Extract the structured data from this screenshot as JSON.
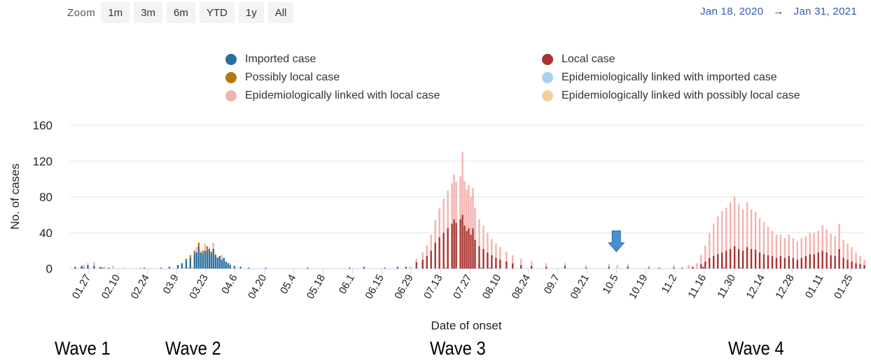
{
  "zoom": {
    "label": "Zoom",
    "buttons": [
      "1m",
      "3m",
      "6m",
      "YTD",
      "1y",
      "All"
    ]
  },
  "range": {
    "from": "Jan 18, 2020",
    "separator": "→",
    "to": "Jan 31, 2021"
  },
  "legend": [
    {
      "name": "Imported case",
      "color": "#2a6fa0"
    },
    {
      "name": "Local case",
      "color": "#a8322e"
    },
    {
      "name": "Possibly local case",
      "color": "#b8760e"
    },
    {
      "name": "Epidemiologically linked with imported case",
      "color": "#a9d2ee"
    },
    {
      "name": "Epidemiologically linked with local case",
      "color": "#f3b2b0"
    },
    {
      "name": "Epidemiologically linked with possibly local case",
      "color": "#f6cf9b"
    }
  ],
  "waves": [
    "Wave 1",
    "Wave 2",
    "Wave 3",
    "Wave 4"
  ],
  "arrow_marker": {
    "date": "10.5",
    "color": "#4a8fd0"
  },
  "chart_data": {
    "type": "bar",
    "stacked": true,
    "xlabel": "Date of onset",
    "ylabel": "No. of cases",
    "ylim": [
      0,
      160
    ],
    "yticks": [
      0,
      40,
      80,
      120,
      160
    ],
    "grid": true,
    "x_start": "2020-01-18",
    "x_end": "2021-01-31",
    "xtick_labels": [
      "01.27",
      "02.10",
      "02.24",
      "03.9",
      "03.23",
      "04.6",
      "04.20",
      "05.4",
      "05.18",
      "06.1",
      "06.15",
      "06.29",
      "07.13",
      "07.27",
      "08.10",
      "08.24",
      "09.7",
      "09.21",
      "10.5",
      "10.19",
      "11.2",
      "11.16",
      "11.30",
      "12.14",
      "12.28",
      "01.11",
      "01.25"
    ],
    "series": [
      {
        "name": "Imported case",
        "color": "#2a6fa0",
        "points": [
          [
            "2020-01-20",
            2
          ],
          [
            "2020-01-23",
            3
          ],
          [
            "2020-01-26",
            4
          ],
          [
            "2020-01-29",
            3
          ],
          [
            "2020-02-01",
            2
          ],
          [
            "2020-02-05",
            1
          ],
          [
            "2020-02-22",
            1
          ],
          [
            "2020-03-01",
            1
          ],
          [
            "2020-03-05",
            2
          ],
          [
            "2020-03-09",
            4
          ],
          [
            "2020-03-11",
            6
          ],
          [
            "2020-03-13",
            9
          ],
          [
            "2020-03-15",
            12
          ],
          [
            "2020-03-17",
            16
          ],
          [
            "2020-03-18",
            18
          ],
          [
            "2020-03-19",
            22
          ],
          [
            "2020-03-20",
            18
          ],
          [
            "2020-03-21",
            16
          ],
          [
            "2020-03-22",
            20
          ],
          [
            "2020-03-23",
            18
          ],
          [
            "2020-03-24",
            22
          ],
          [
            "2020-03-25",
            16
          ],
          [
            "2020-03-26",
            20
          ],
          [
            "2020-03-27",
            14
          ],
          [
            "2020-03-28",
            12
          ],
          [
            "2020-03-29",
            14
          ],
          [
            "2020-03-30",
            10
          ],
          [
            "2020-03-31",
            12
          ],
          [
            "2020-04-01",
            8
          ],
          [
            "2020-04-02",
            6
          ],
          [
            "2020-04-03",
            4
          ],
          [
            "2020-04-05",
            3
          ],
          [
            "2020-04-08",
            2
          ],
          [
            "2020-04-12",
            1
          ],
          [
            "2020-04-20",
            1
          ],
          [
            "2020-05-10",
            1
          ],
          [
            "2020-05-30",
            1
          ],
          [
            "2020-06-06",
            2
          ],
          [
            "2020-06-16",
            1
          ],
          [
            "2020-06-22",
            2
          ],
          [
            "2020-06-26",
            2
          ],
          [
            "2020-07-01",
            2
          ],
          [
            "2020-07-10",
            1
          ],
          [
            "2020-07-20",
            1
          ],
          [
            "2020-08-01",
            1
          ],
          [
            "2020-09-10",
            1
          ],
          [
            "2020-10-01",
            1
          ],
          [
            "2020-10-25",
            1
          ],
          [
            "2020-11-05",
            1
          ],
          [
            "2020-11-15",
            2
          ],
          [
            "2020-11-25",
            1
          ],
          [
            "2020-12-03",
            1
          ],
          [
            "2020-12-10",
            1
          ],
          [
            "2021-01-05",
            1
          ]
        ]
      },
      {
        "name": "Local case",
        "color": "#a8322e",
        "points": [
          [
            "2020-01-24",
            1
          ],
          [
            "2020-02-02",
            1
          ],
          [
            "2020-03-19",
            2
          ],
          [
            "2020-03-23",
            2
          ],
          [
            "2020-03-26",
            2
          ],
          [
            "2020-07-01",
            5
          ],
          [
            "2020-07-04",
            10
          ],
          [
            "2020-07-06",
            14
          ],
          [
            "2020-07-08",
            20
          ],
          [
            "2020-07-10",
            28
          ],
          [
            "2020-07-12",
            35
          ],
          [
            "2020-07-14",
            40
          ],
          [
            "2020-07-16",
            45
          ],
          [
            "2020-07-18",
            50
          ],
          [
            "2020-07-19",
            55
          ],
          [
            "2020-07-20",
            50
          ],
          [
            "2020-07-22",
            55
          ],
          [
            "2020-07-23",
            60
          ],
          [
            "2020-07-24",
            48
          ],
          [
            "2020-07-25",
            42
          ],
          [
            "2020-07-26",
            45
          ],
          [
            "2020-07-27",
            38
          ],
          [
            "2020-07-28",
            45
          ],
          [
            "2020-07-29",
            32
          ],
          [
            "2020-07-31",
            25
          ],
          [
            "2020-08-02",
            22
          ],
          [
            "2020-08-04",
            18
          ],
          [
            "2020-08-06",
            15
          ],
          [
            "2020-08-08",
            12
          ],
          [
            "2020-08-10",
            10
          ],
          [
            "2020-08-13",
            8
          ],
          [
            "2020-08-16",
            6
          ],
          [
            "2020-08-20",
            4
          ],
          [
            "2020-08-25",
            3
          ],
          [
            "2020-09-01",
            2
          ],
          [
            "2020-09-10",
            2
          ],
          [
            "2020-09-20",
            1
          ],
          [
            "2020-10-01",
            1
          ],
          [
            "2020-10-10",
            2
          ],
          [
            "2020-10-20",
            1
          ],
          [
            "2020-11-01",
            1
          ],
          [
            "2020-11-10",
            2
          ],
          [
            "2020-11-14",
            5
          ],
          [
            "2020-11-16",
            8
          ],
          [
            "2020-11-18",
            12
          ],
          [
            "2020-11-20",
            14
          ],
          [
            "2020-11-22",
            16
          ],
          [
            "2020-11-24",
            18
          ],
          [
            "2020-11-26",
            20
          ],
          [
            "2020-11-28",
            22
          ],
          [
            "2020-11-30",
            25
          ],
          [
            "2020-12-02",
            22
          ],
          [
            "2020-12-04",
            20
          ],
          [
            "2020-12-06",
            24
          ],
          [
            "2020-12-08",
            22
          ],
          [
            "2020-12-10",
            20
          ],
          [
            "2020-12-12",
            18
          ],
          [
            "2020-12-14",
            16
          ],
          [
            "2020-12-16",
            15
          ],
          [
            "2020-12-18",
            14
          ],
          [
            "2020-12-20",
            12
          ],
          [
            "2020-12-22",
            14
          ],
          [
            "2020-12-24",
            12
          ],
          [
            "2020-12-26",
            14
          ],
          [
            "2020-12-28",
            12
          ],
          [
            "2020-12-30",
            10
          ],
          [
            "2021-01-01",
            12
          ],
          [
            "2021-01-03",
            14
          ],
          [
            "2021-01-05",
            15
          ],
          [
            "2021-01-07",
            16
          ],
          [
            "2021-01-09",
            18
          ],
          [
            "2021-01-11",
            20
          ],
          [
            "2021-01-13",
            18
          ],
          [
            "2021-01-15",
            15
          ],
          [
            "2021-01-17",
            14
          ],
          [
            "2021-01-19",
            22
          ],
          [
            "2021-01-21",
            12
          ],
          [
            "2021-01-23",
            10
          ],
          [
            "2021-01-25",
            8
          ],
          [
            "2021-01-27",
            6
          ],
          [
            "2021-01-29",
            5
          ],
          [
            "2021-01-31",
            4
          ]
        ]
      },
      {
        "name": "Possibly local case",
        "color": "#b8760e",
        "points": [
          [
            "2020-03-13",
            2
          ],
          [
            "2020-03-15",
            3
          ],
          [
            "2020-03-17",
            4
          ],
          [
            "2020-03-19",
            5
          ],
          [
            "2020-03-21",
            4
          ],
          [
            "2020-03-23",
            5
          ],
          [
            "2020-03-25",
            3
          ],
          [
            "2020-03-27",
            2
          ],
          [
            "2020-07-15",
            1
          ],
          [
            "2020-08-05",
            1
          ]
        ]
      },
      {
        "name": "Epidemiologically linked with imported case",
        "color": "#a9d2ee",
        "points": [
          [
            "2020-03-18",
            2
          ],
          [
            "2020-03-22",
            2
          ],
          [
            "2020-03-26",
            2
          ],
          [
            "2020-03-30",
            1
          ]
        ]
      },
      {
        "name": "Epidemiologically linked with local case",
        "color": "#f3b2b0",
        "points": [
          [
            "2020-01-24",
            3
          ],
          [
            "2020-01-26",
            2
          ],
          [
            "2020-01-29",
            4
          ],
          [
            "2020-02-03",
            2
          ],
          [
            "2020-02-07",
            3
          ],
          [
            "2020-02-12",
            1
          ],
          [
            "2020-02-20",
            1
          ],
          [
            "2020-03-14",
            2
          ],
          [
            "2020-03-18",
            4
          ],
          [
            "2020-03-22",
            6
          ],
          [
            "2020-03-26",
            5
          ],
          [
            "2020-03-30",
            4
          ],
          [
            "2020-04-03",
            2
          ],
          [
            "2020-06-28",
            2
          ],
          [
            "2020-07-01",
            4
          ],
          [
            "2020-07-04",
            8
          ],
          [
            "2020-07-06",
            12
          ],
          [
            "2020-07-08",
            18
          ],
          [
            "2020-07-10",
            25
          ],
          [
            "2020-07-12",
            32
          ],
          [
            "2020-07-14",
            38
          ],
          [
            "2020-07-16",
            42
          ],
          [
            "2020-07-18",
            45
          ],
          [
            "2020-07-19",
            50
          ],
          [
            "2020-07-20",
            46
          ],
          [
            "2020-07-22",
            48
          ],
          [
            "2020-07-23",
            70
          ],
          [
            "2020-07-24",
            50
          ],
          [
            "2020-07-25",
            46
          ],
          [
            "2020-07-26",
            48
          ],
          [
            "2020-07-27",
            42
          ],
          [
            "2020-07-28",
            45
          ],
          [
            "2020-07-29",
            36
          ],
          [
            "2020-07-31",
            30
          ],
          [
            "2020-08-02",
            26
          ],
          [
            "2020-08-04",
            22
          ],
          [
            "2020-08-06",
            18
          ],
          [
            "2020-08-08",
            16
          ],
          [
            "2020-08-10",
            14
          ],
          [
            "2020-08-13",
            11
          ],
          [
            "2020-08-16",
            9
          ],
          [
            "2020-08-20",
            7
          ],
          [
            "2020-08-25",
            5
          ],
          [
            "2020-09-01",
            4
          ],
          [
            "2020-09-10",
            3
          ],
          [
            "2020-09-20",
            3
          ],
          [
            "2020-10-01",
            3
          ],
          [
            "2020-10-05",
            4
          ],
          [
            "2020-10-10",
            3
          ],
          [
            "2020-10-20",
            2
          ],
          [
            "2020-11-01",
            3
          ],
          [
            "2020-11-08",
            4
          ],
          [
            "2020-11-12",
            6
          ],
          [
            "2020-11-14",
            10
          ],
          [
            "2020-11-16",
            18
          ],
          [
            "2020-11-18",
            28
          ],
          [
            "2020-11-20",
            36
          ],
          [
            "2020-11-22",
            42
          ],
          [
            "2020-11-24",
            46
          ],
          [
            "2020-11-26",
            48
          ],
          [
            "2020-11-28",
            52
          ],
          [
            "2020-11-30",
            55
          ],
          [
            "2020-12-02",
            50
          ],
          [
            "2020-12-04",
            46
          ],
          [
            "2020-12-06",
            50
          ],
          [
            "2020-12-08",
            44
          ],
          [
            "2020-12-10",
            42
          ],
          [
            "2020-12-12",
            38
          ],
          [
            "2020-12-14",
            36
          ],
          [
            "2020-12-16",
            32
          ],
          [
            "2020-12-18",
            28
          ],
          [
            "2020-12-20",
            26
          ],
          [
            "2020-12-22",
            24
          ],
          [
            "2020-12-24",
            22
          ],
          [
            "2020-12-26",
            24
          ],
          [
            "2020-12-28",
            22
          ],
          [
            "2020-12-30",
            20
          ],
          [
            "2021-01-01",
            22
          ],
          [
            "2021-01-03",
            22
          ],
          [
            "2021-01-05",
            24
          ],
          [
            "2021-01-07",
            24
          ],
          [
            "2021-01-09",
            24
          ],
          [
            "2021-01-11",
            28
          ],
          [
            "2021-01-13",
            26
          ],
          [
            "2021-01-15",
            24
          ],
          [
            "2021-01-17",
            22
          ],
          [
            "2021-01-19",
            28
          ],
          [
            "2021-01-21",
            20
          ],
          [
            "2021-01-23",
            18
          ],
          [
            "2021-01-25",
            16
          ],
          [
            "2021-01-27",
            12
          ],
          [
            "2021-01-29",
            9
          ],
          [
            "2021-01-31",
            6
          ]
        ]
      },
      {
        "name": "Epidemiologically linked with possibly local case",
        "color": "#f6cf9b",
        "points": [
          [
            "2020-01-24",
            1
          ],
          [
            "2020-03-12",
            1
          ],
          [
            "2020-03-16",
            2
          ],
          [
            "2020-03-20",
            3
          ],
          [
            "2020-03-24",
            2
          ],
          [
            "2020-03-28",
            1
          ]
        ]
      }
    ]
  }
}
